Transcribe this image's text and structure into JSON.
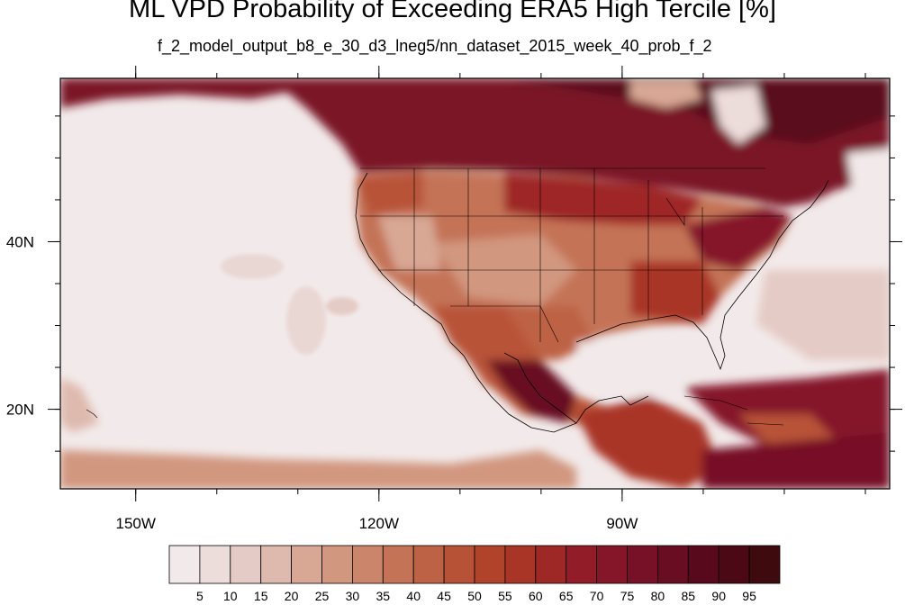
{
  "title": "ML VPD Probability of Exceeding ERA5 High Tercile [%]",
  "subtitle": "f_2_model_output_b8_e_30_d3_lneg5/nn_dataset_2015_week_40_prob_f_2",
  "chart_data": {
    "type": "heatmap",
    "title": "ML VPD Probability of Exceeding ERA5 High Tercile [%]",
    "subtitle": "f_2_model_output_b8_e_30_d3_lneg5/nn_dataset_2015_week_40_prob_f_2",
    "x_ticks": [
      {
        "lon": -150,
        "label": "150W"
      },
      {
        "lon": -120,
        "label": "120W"
      },
      {
        "lon": -90,
        "label": "90W"
      }
    ],
    "y_ticks": [
      {
        "lat": 40,
        "label": "40N"
      },
      {
        "lat": 20,
        "label": "20N"
      }
    ],
    "lon_range": [
      -159.3,
      -57
    ],
    "lat_range": [
      10.5,
      59.5
    ],
    "colorbar": {
      "levels": [
        5,
        10,
        15,
        20,
        25,
        30,
        35,
        40,
        45,
        50,
        55,
        60,
        65,
        70,
        75,
        80,
        85,
        90,
        95
      ],
      "colors": [
        "#f2eaea",
        "#ecdcda",
        "#e5cbc5",
        "#deb9ad",
        "#d8a895",
        "#d1977f",
        "#ca856a",
        "#c47357",
        "#be6245",
        "#b85237",
        "#b1432b",
        "#a93526",
        "#9e2826",
        "#921d28",
        "#851629",
        "#771127",
        "#680d22",
        "#580a1c",
        "#4a0914",
        "#3e0a0e"
      ]
    }
  }
}
